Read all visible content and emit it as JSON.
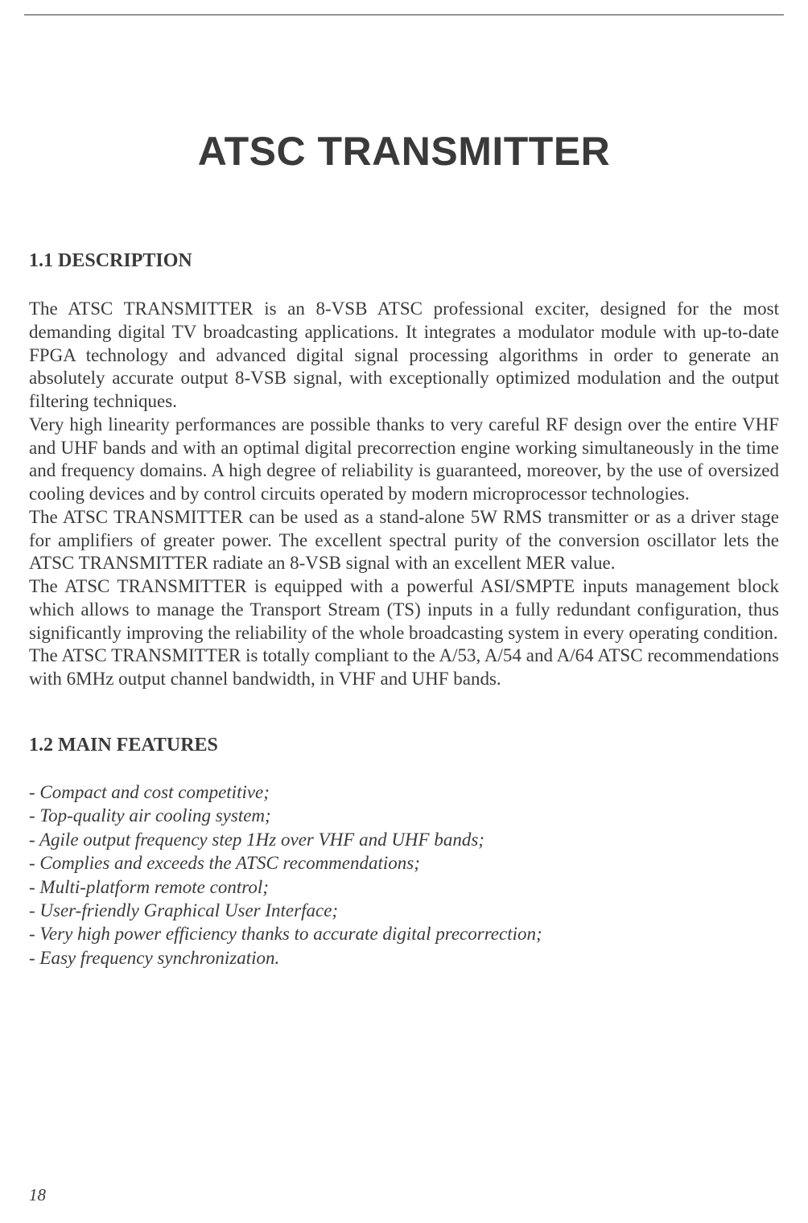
{
  "page": {
    "number": "18",
    "title": "ATSC TRANSMITTER",
    "sections": {
      "description": {
        "heading": "1.1 DESCRIPTION",
        "paragraphs": [
          "The ATSC TRANSMITTER is an 8-VSB ATSC professional exciter, designed for the most demanding digital TV broadcasting applications. It integrates a modulator module with up-to-date FPGA technology and advanced digital signal processing algorithms in order to generate an absolutely accurate output 8-VSB signal, with exceptionally optimized modulation and the output filtering techniques.",
          "Very high linearity performances are possible thanks to very careful RF design over the entire VHF and UHF bands and with an optimal digital precorrection engine working simultaneously in the time and frequency domains. A high degree of reliability is guaranteed, moreover, by the use of oversized cooling devices and by control circuits operated by modern microprocessor technologies.",
          "The ATSC TRANSMITTER can be used as a stand-alone 5W RMS transmitter or as a driver stage for amplifiers of greater power. The excellent spectral purity of the conversion oscillator lets the ATSC TRANSMITTER radiate an 8-VSB signal with an excellent MER value.",
          "The ATSC TRANSMITTER is equipped with a powerful ASI/SMPTE inputs management block which allows to manage the Transport Stream (TS) inputs in a fully redundant configuration, thus significantly improving the reliability of the whole broadcasting system in every operating condition.",
          "The ATSC TRANSMITTER is totally compliant to the A/53, A/54 and A/64 ATSC recommendations with 6MHz output channel bandwidth, in VHF and UHF bands."
        ]
      },
      "features": {
        "heading": "1.2 MAIN FEATURES",
        "items": [
          "- Compact and cost competitive;",
          "- Top-quality air cooling system;",
          "- Agile output frequency step 1Hz over VHF and UHF bands;",
          "- Complies and exceeds the ATSC recommendations;",
          "- Multi-platform remote control;",
          "- User-friendly Graphical User Interface;",
          "- Very high power efficiency thanks to accurate digital precorrection;",
          "- Easy frequency synchronization."
        ]
      }
    }
  },
  "colors": {
    "text": "#3a3a3a",
    "background": "#ffffff",
    "rule": "#3a3a3a"
  },
  "typography": {
    "title_font": "Arial",
    "title_size_pt": 38,
    "heading_size_pt": 18,
    "body_size_pt": 17,
    "body_font": "Times New Roman"
  }
}
